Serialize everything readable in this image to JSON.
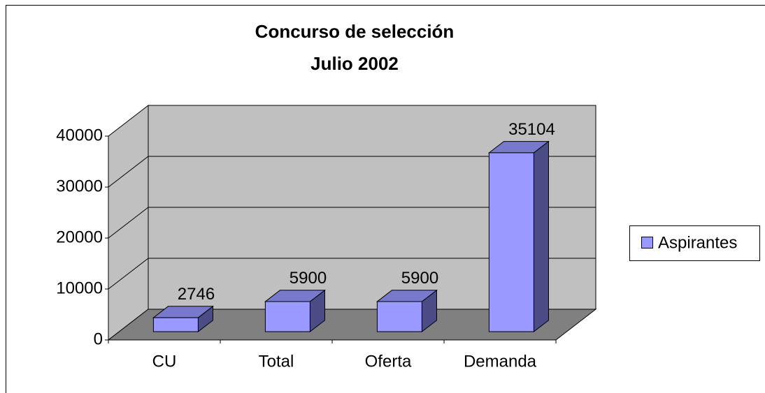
{
  "chart_data": {
    "type": "bar3d",
    "title": [
      "Concurso de selección",
      "Julio 2002"
    ],
    "categories": [
      "CU",
      "Total",
      "Oferta",
      "Demanda"
    ],
    "series": [
      {
        "name": "Aspirantes",
        "color": "#9999ff",
        "values": [
          2746,
          5900,
          5900,
          35104
        ]
      }
    ],
    "ylim": [
      0,
      40000
    ],
    "yticks": [
      0,
      10000,
      20000,
      30000,
      40000
    ],
    "grid": true,
    "legend": "right"
  }
}
